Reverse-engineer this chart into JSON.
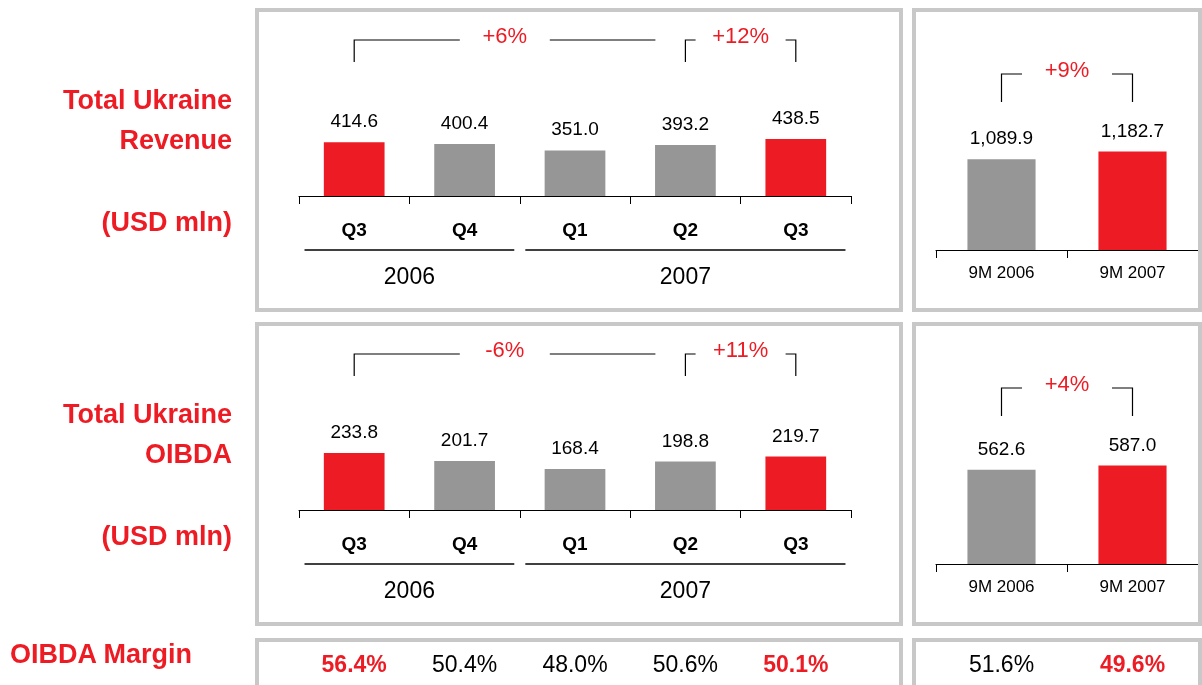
{
  "chart_data": [
    {
      "type": "bar",
      "title": "Total Ukraine Revenue",
      "ylabel": "(USD mln)",
      "categories": [
        "Q3",
        "Q4",
        "Q1",
        "Q2",
        "Q3"
      ],
      "values": [
        414.6,
        400.4,
        351.0,
        393.2,
        438.5
      ],
      "value_labels": [
        "414.6",
        "400.4",
        "351.0",
        "393.2",
        "438.5"
      ],
      "colors": [
        "#ed1c24",
        "#969696",
        "#969696",
        "#969696",
        "#ed1c24"
      ],
      "annotations": [
        "+6%",
        "+12%",
        "2006",
        "2007"
      ]
    },
    {
      "type": "bar",
      "categories": [
        "9M 2006",
        "9M 2007"
      ],
      "values": [
        1089.9,
        1182.7
      ],
      "value_labels": [
        "1,089.9",
        "1,182.7"
      ],
      "colors": [
        "#969696",
        "#ed1c24"
      ],
      "annotations": [
        "+9%"
      ]
    },
    {
      "type": "bar",
      "title": "Total Ukraine OIBDA",
      "ylabel": "(USD mln)",
      "categories": [
        "Q3",
        "Q4",
        "Q1",
        "Q2",
        "Q3"
      ],
      "values": [
        233.8,
        201.7,
        168.4,
        198.8,
        219.7
      ],
      "value_labels": [
        "233.8",
        "201.7",
        "168.4",
        "198.8",
        "219.7"
      ],
      "colors": [
        "#ed1c24",
        "#969696",
        "#969696",
        "#969696",
        "#ed1c24"
      ],
      "annotations": [
        "-6%",
        "+11%",
        "2006",
        "2007"
      ]
    },
    {
      "type": "bar",
      "categories": [
        "9M 2006",
        "9M 2007"
      ],
      "values": [
        562.6,
        587.0
      ],
      "value_labels": [
        "562.6",
        "587.0"
      ],
      "colors": [
        "#969696",
        "#ed1c24"
      ],
      "annotations": [
        "+4%"
      ]
    },
    {
      "type": "other",
      "title": "OIBDA Margin",
      "annotations": [
        "56.4%",
        "50.4%",
        "48.0%",
        "50.6%",
        "50.1%"
      ],
      "colors": [
        "#ed1c24",
        "#000000",
        "#000000",
        "#000000",
        "#ed1c24"
      ]
    },
    {
      "type": "other",
      "annotations": [
        "51.6%",
        "49.6%"
      ],
      "colors": [
        "#000000",
        "#ed1c24"
      ]
    }
  ]
}
